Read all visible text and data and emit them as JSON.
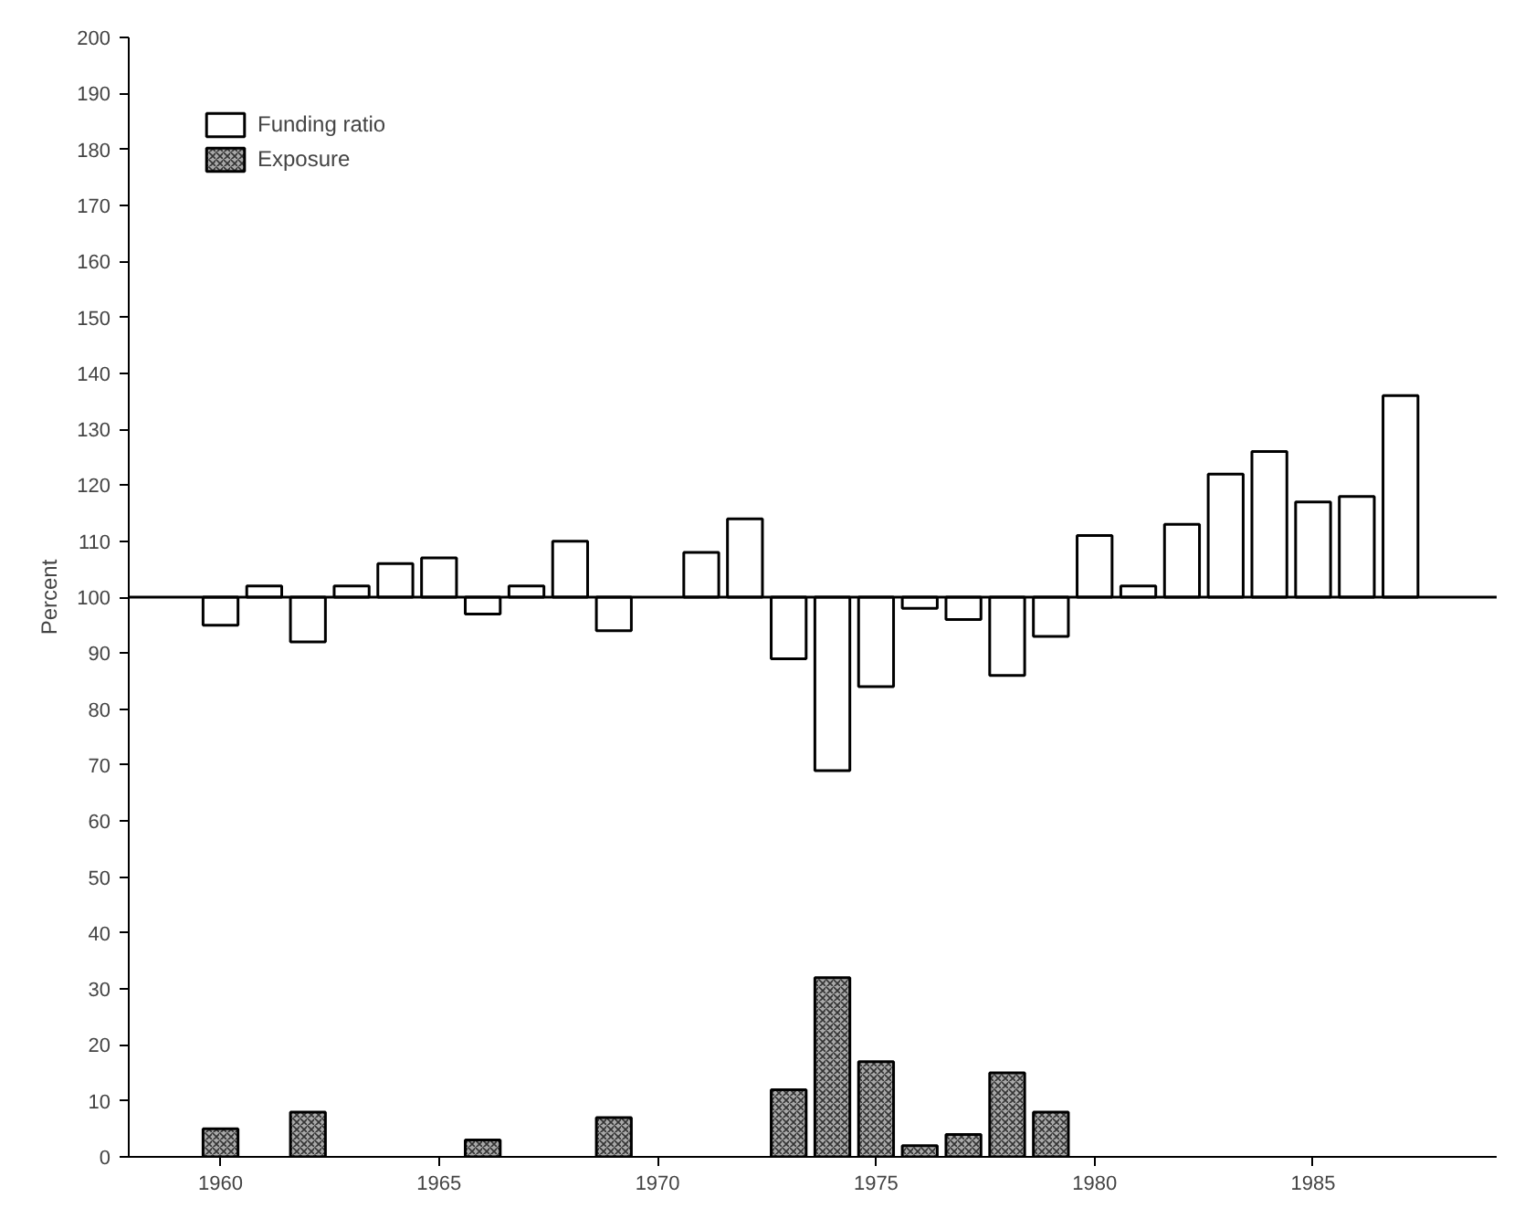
{
  "chart_data": {
    "type": "bar",
    "ylabel": "Percent",
    "x": [
      1960,
      1961,
      1962,
      1963,
      1964,
      1965,
      1966,
      1967,
      1968,
      1969,
      1970,
      1971,
      1972,
      1973,
      1974,
      1975,
      1976,
      1977,
      1978,
      1979,
      1980,
      1981,
      1982,
      1983,
      1984,
      1985,
      1986,
      1987
    ],
    "series": [
      {
        "name": "Funding ratio",
        "color": "#ffffff",
        "base": [
          100,
          100,
          100,
          100,
          100,
          100,
          100,
          100,
          100,
          100,
          null,
          100,
          100,
          100,
          100,
          100,
          100,
          100,
          100,
          100,
          100,
          100,
          100,
          100,
          100,
          100,
          100,
          100
        ],
        "values": [
          -5,
          2,
          -8,
          2,
          6,
          7,
          -3,
          2,
          10,
          -6,
          null,
          8,
          14,
          -11,
          -31,
          -16,
          -2,
          -4,
          -14,
          -7,
          11,
          2,
          13,
          22,
          26,
          17,
          18,
          36
        ]
      },
      {
        "name": "Exposure",
        "color": "#a8a8a8",
        "values": [
          5,
          null,
          8,
          null,
          null,
          null,
          3,
          null,
          null,
          7,
          null,
          null,
          null,
          12,
          32,
          17,
          2,
          4,
          15,
          8,
          null,
          null,
          null,
          null,
          null,
          null,
          null,
          null
        ]
      }
    ],
    "ref_lines": [
      {
        "axis": "y",
        "value": 100,
        "label": null
      }
    ],
    "xlim": [
      1957.9,
      1989.2
    ],
    "xticks": [
      1960,
      1965,
      1970,
      1975,
      1980,
      1985
    ],
    "ylim": [
      0,
      200
    ],
    "yticks": [
      0,
      10,
      20,
      30,
      40,
      50,
      60,
      70,
      80,
      90,
      100,
      110,
      120,
      130,
      140,
      150,
      160,
      170,
      180,
      190,
      200
    ],
    "grid": false,
    "legend": "top left"
  }
}
